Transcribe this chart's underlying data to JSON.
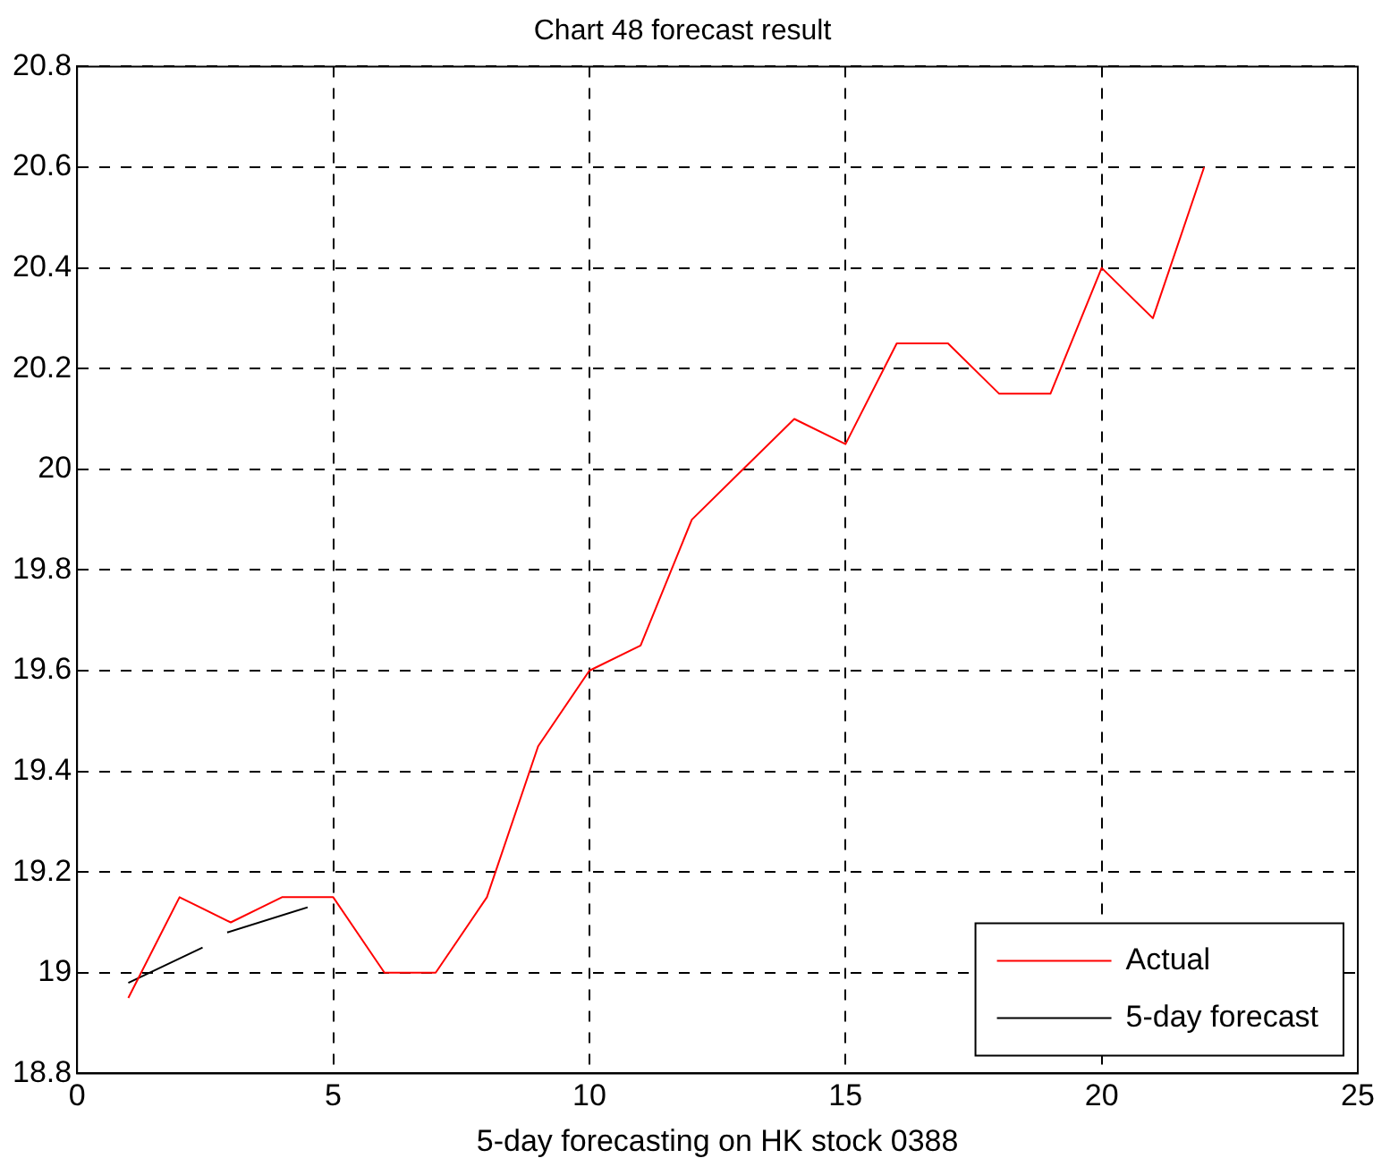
{
  "chart_data": {
    "type": "line",
    "title": "Chart 48 forecast result",
    "xlabel": "5-day forecasting on HK stock 0388",
    "x": [
      1,
      2,
      3,
      4,
      5,
      6,
      7,
      8,
      9,
      10,
      11,
      12,
      13,
      14,
      15,
      16,
      17,
      18,
      19,
      20,
      21,
      22
    ],
    "series": [
      {
        "name": "Actual",
        "color": "#ff0000",
        "values": [
          18.95,
          19.15,
          19.1,
          19.15,
          19.15,
          19.0,
          19.0,
          19.15,
          19.45,
          19.6,
          19.65,
          19.9,
          20.0,
          20.1,
          20.05,
          20.25,
          20.25,
          20.15,
          20.15,
          20.4,
          20.3,
          20.6
        ]
      },
      {
        "name": "5-day forecast",
        "color": "#000000",
        "x": [
          1,
          2.45,
          2.7,
          2.93,
          4.5
        ],
        "values": [
          18.98,
          19.05,
          null,
          19.08,
          19.13
        ]
      }
    ],
    "xlim": [
      0,
      25
    ],
    "xticks": [
      0,
      5,
      10,
      15,
      20,
      25
    ],
    "ylim": [
      18.8,
      20.8
    ],
    "yticks": [
      18.8,
      19,
      19.2,
      19.4,
      19.6,
      19.8,
      20,
      20.2,
      20.4,
      20.6,
      20.8
    ],
    "grid": true,
    "legend": "bottom right",
    "marker": "none",
    "line_style": "solid"
  }
}
